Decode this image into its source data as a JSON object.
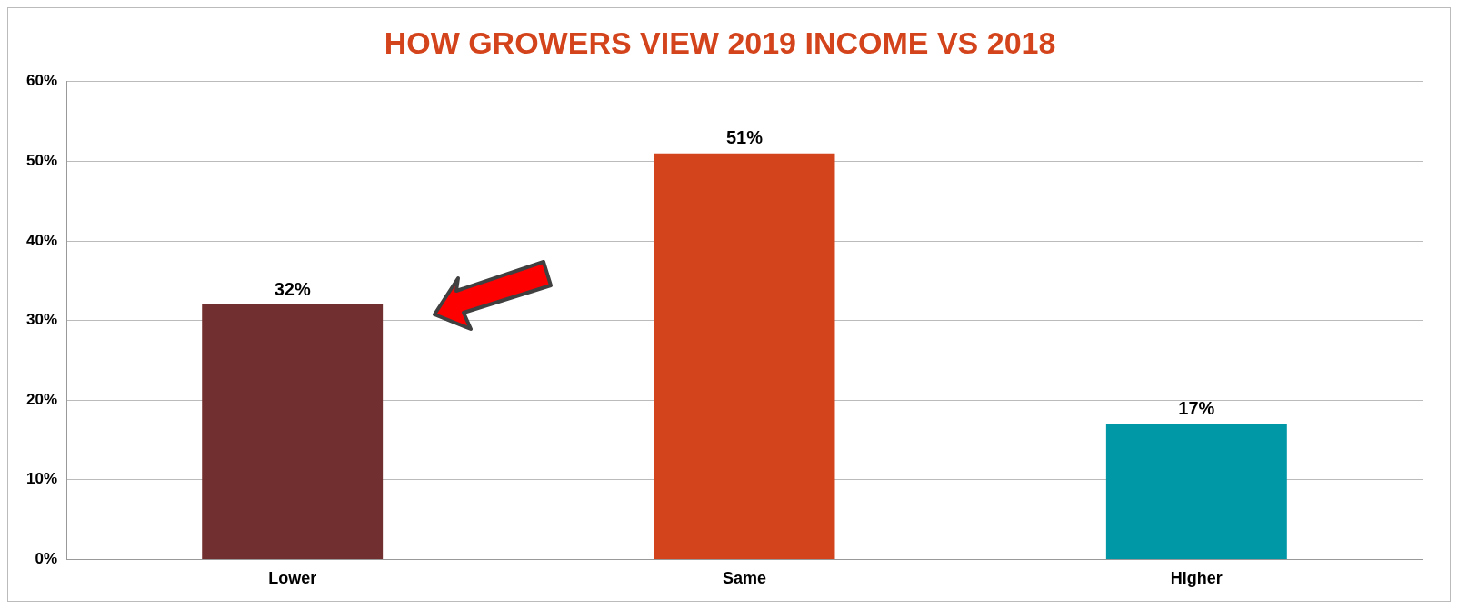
{
  "chart_data": {
    "type": "bar",
    "title": "HOW GROWERS VIEW 2019 INCOME VS 2018",
    "categories": [
      "Lower",
      "Same",
      "Higher"
    ],
    "values": [
      32,
      51,
      17
    ],
    "colors": [
      "#722f2f",
      "#d4441c",
      "#0097a7"
    ],
    "value_labels": [
      "32%",
      "51%",
      "17%"
    ],
    "ylim": [
      0,
      60
    ],
    "yticks": [
      {
        "value": 0,
        "label": "0%"
      },
      {
        "value": 10,
        "label": "10%"
      },
      {
        "value": 20,
        "label": "20%"
      },
      {
        "value": 30,
        "label": "30%"
      },
      {
        "value": 40,
        "label": "40%"
      },
      {
        "value": 50,
        "label": "50%"
      },
      {
        "value": 60,
        "label": "60%"
      }
    ],
    "grid": "y",
    "legend": false
  }
}
